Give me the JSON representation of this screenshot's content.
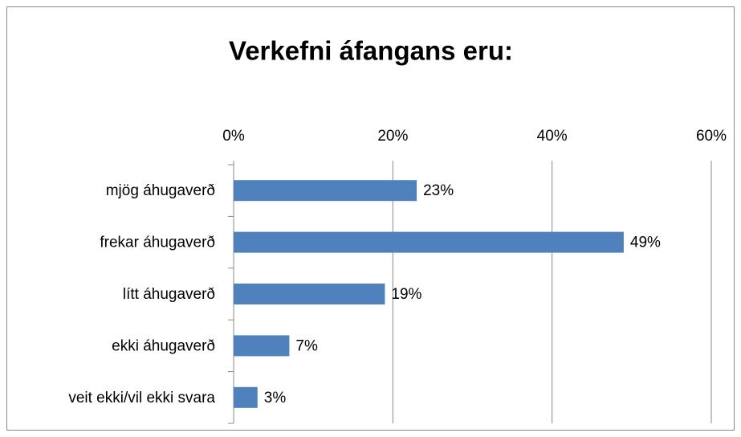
{
  "chart_data": {
    "type": "bar",
    "orientation": "horizontal",
    "title": "Verkefni áfangans eru:",
    "categories": [
      "mjög áhugaverð",
      "frekar áhugaverð",
      "lítt áhugaverð",
      "ekki áhugaverð",
      "veit ekki/vil ekki svara"
    ],
    "values": [
      23,
      49,
      19,
      7,
      3
    ],
    "value_labels": [
      "23%",
      "49%",
      "19%",
      "7%",
      "3%"
    ],
    "color": "#4f81bd",
    "xlim": [
      0,
      60
    ],
    "xticks": [
      {
        "value": 0,
        "label": "0%"
      },
      {
        "value": 20,
        "label": "20%"
      },
      {
        "value": 40,
        "label": "40%"
      },
      {
        "value": 60,
        "label": "60%"
      }
    ],
    "grid": true
  }
}
